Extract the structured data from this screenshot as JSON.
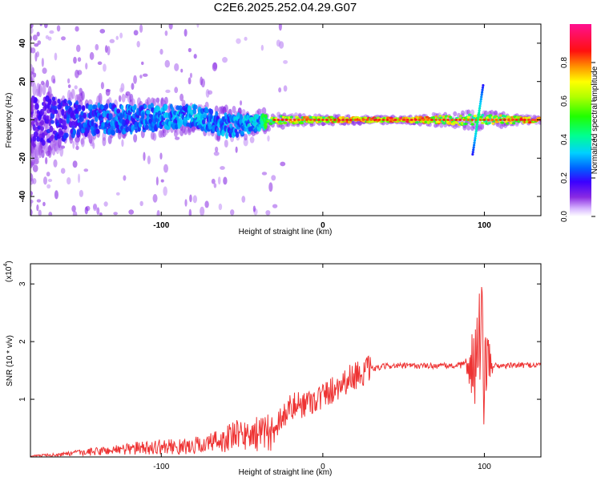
{
  "title": "C2E6.2025.252.04.29.G07",
  "chart_data": [
    {
      "type": "heatmap",
      "name": "spectrogram",
      "xlabel": "Height of straight line (km)",
      "ylabel": "Frequency (Hz)",
      "xlim": [
        -181,
        135
      ],
      "ylim": [
        -50,
        50
      ],
      "xticks": [
        -100,
        0,
        100
      ],
      "yticks": [
        -40,
        -20,
        0,
        20,
        40
      ],
      "colorbar": {
        "label": "Normalized spectral amplitude",
        "range": [
          0,
          1
        ],
        "ticks": [
          0.0,
          0.2,
          0.4,
          0.6,
          0.8
        ],
        "tick_labels": [
          "0.0",
          "0.2",
          "0.4",
          "0.6",
          "0.8"
        ]
      },
      "ridge": {
        "description_points": [
          {
            "x": -181,
            "freq": 0,
            "spread": 14,
            "amp": 0.15
          },
          {
            "x": -150,
            "freq": 0,
            "spread": 8,
            "amp": 0.25
          },
          {
            "x": -100,
            "freq": 1,
            "spread": 6,
            "amp": 0.3
          },
          {
            "x": -80,
            "freq": 2,
            "spread": 5,
            "amp": 0.32
          },
          {
            "x": -60,
            "freq": -3,
            "spread": 6,
            "amp": 0.3
          },
          {
            "x": -40,
            "freq": -2,
            "spread": 4,
            "amp": 0.35
          },
          {
            "x": -30,
            "freq": 0,
            "spread": 2,
            "amp": 0.65
          },
          {
            "x": 0,
            "freq": 0,
            "spread": 1.5,
            "amp": 0.75
          },
          {
            "x": 50,
            "freq": 0,
            "spread": 1,
            "amp": 0.85
          },
          {
            "x": 95,
            "freq": 0,
            "spread": 3,
            "amp": 0.6
          },
          {
            "x": 135,
            "freq": 0,
            "spread": 1,
            "amp": 0.85
          }
        ]
      }
    },
    {
      "type": "line",
      "name": "snr",
      "xlabel": "Height of straight line (km)",
      "ylabel": "SNR (10 * v/v)",
      "scale_label": "(x10",
      "scale_exp": "4",
      "scale_close": ")",
      "xlim": [
        -181,
        135
      ],
      "ylim": [
        0,
        3.35
      ],
      "xticks": [
        -100,
        0,
        100
      ],
      "yticks": [
        1,
        2,
        3
      ],
      "color": "#ee3333",
      "series": [
        {
          "name": "SNR",
          "envelope": [
            {
              "x": -181,
              "y": 0.02
            },
            {
              "x": -160,
              "y": 0.06
            },
            {
              "x": -140,
              "y": 0.12
            },
            {
              "x": -120,
              "y": 0.18
            },
            {
              "x": -100,
              "y": 0.22
            },
            {
              "x": -85,
              "y": 0.22
            },
            {
              "x": -70,
              "y": 0.3
            },
            {
              "x": -55,
              "y": 0.45
            },
            {
              "x": -40,
              "y": 0.5
            },
            {
              "x": -30,
              "y": 0.55
            },
            {
              "x": -20,
              "y": 0.85
            },
            {
              "x": -10,
              "y": 0.95
            },
            {
              "x": 0,
              "y": 1.05
            },
            {
              "x": 10,
              "y": 1.25
            },
            {
              "x": 20,
              "y": 1.42
            },
            {
              "x": 30,
              "y": 1.52
            },
            {
              "x": 40,
              "y": 1.58
            },
            {
              "x": 60,
              "y": 1.58
            },
            {
              "x": 80,
              "y": 1.58
            },
            {
              "x": 90,
              "y": 1.6
            },
            {
              "x": 110,
              "y": 1.58
            },
            {
              "x": 135,
              "y": 1.6
            }
          ]
        }
      ]
    }
  ]
}
